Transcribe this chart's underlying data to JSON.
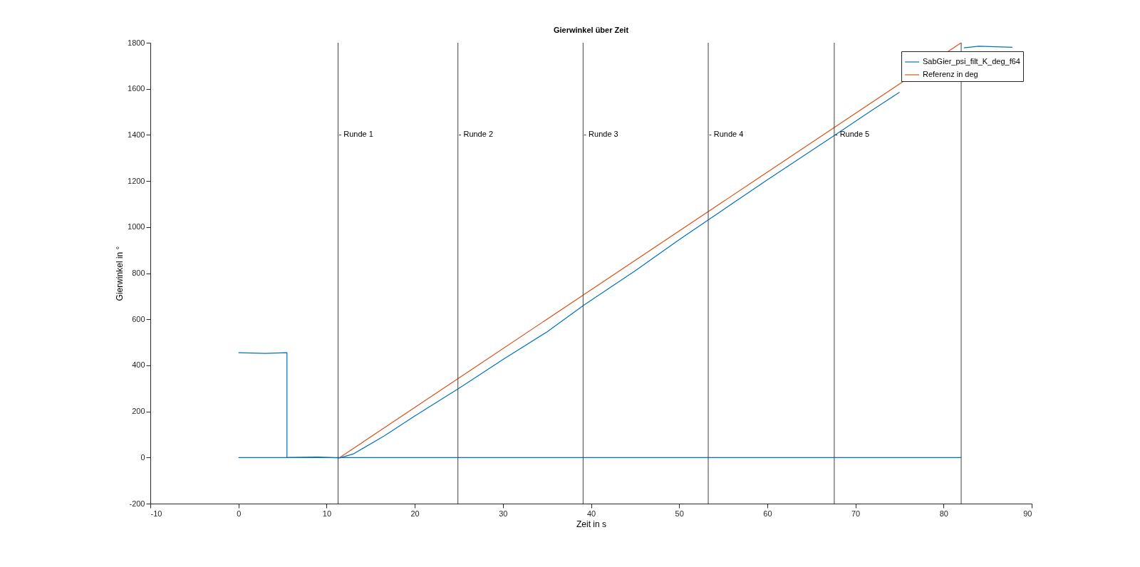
{
  "chart_data": {
    "type": "line",
    "title": "Gierwinkel über Zeit",
    "xlabel": "Zeit in s",
    "ylabel": "Gierwinkel in °",
    "xlim": [
      -10,
      90
    ],
    "xticks": [
      -10,
      0,
      10,
      20,
      30,
      40,
      50,
      60,
      70,
      80,
      90
    ],
    "ylim": [
      -200,
      1800
    ],
    "yticks": [
      -200,
      0,
      200,
      400,
      600,
      800,
      1000,
      1200,
      1400,
      1600,
      1800
    ],
    "grid": false,
    "legend": "top right",
    "series": [
      {
        "name": "SabGier_psi_filt_K_deg_f64",
        "color": "#0072bd",
        "x": [
          0,
          3,
          5.5,
          5.5,
          9,
          11.5,
          13,
          16.6,
          20,
          25,
          30,
          35,
          39.2,
          45,
          50,
          53.3,
          60,
          67.6,
          72,
          75,
          80,
          82.3,
          84,
          87.8
        ],
        "values": [
          455,
          452,
          455,
          0,
          2,
          -2,
          15,
          95,
          180,
          300,
          425,
          545,
          662,
          810,
          945,
          1031,
          1205,
          1397,
          1510,
          1585,
          null,
          1778,
          1785,
          1780
        ]
      },
      {
        "name": "Referenz in deg",
        "color": "#d95319",
        "x": [
          11.5,
          82
        ],
        "values": [
          0,
          1800
        ]
      },
      {
        "color": "#0072bd",
        "x": [
          0,
          82
        ],
        "values": [
          0,
          0
        ]
      }
    ],
    "ref_lines": [
      {
        "axis": "x",
        "value": 11.3,
        "label": "- Runde 1",
        "color": "#404040"
      },
      {
        "axis": "x",
        "value": 24.9,
        "label": "- Runde 2",
        "color": "#404040"
      },
      {
        "axis": "x",
        "value": 39.1,
        "label": "- Runde 3",
        "color": "#404040"
      },
      {
        "axis": "x",
        "value": 53.3,
        "label": "- Runde 4",
        "color": "#404040"
      },
      {
        "axis": "x",
        "value": 67.6,
        "label": "- Runde 5",
        "color": "#404040"
      },
      {
        "axis": "x",
        "value": 82,
        "color": "#404040"
      }
    ]
  }
}
